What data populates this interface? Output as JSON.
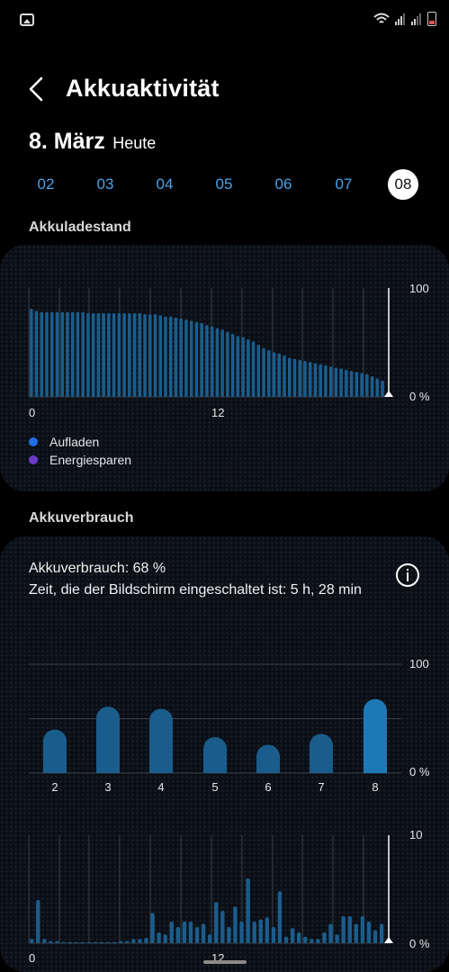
{
  "status_bar": {
    "icons": [
      "gallery-icon",
      "wifi-icon",
      "signal-icon",
      "signal-icon",
      "battery-icon"
    ]
  },
  "header": {
    "title": "Akkuaktivität",
    "back_icon": "chevron-left-icon"
  },
  "date": {
    "main": "8. März",
    "sub": "Heute"
  },
  "day_tabs": [
    "02",
    "03",
    "04",
    "05",
    "06",
    "07",
    "08"
  ],
  "selected_day": "08",
  "battery_level": {
    "section_title": "Akkuladestand",
    "y_max_label": "100",
    "y_min_label": "0 %",
    "x_labels": [
      "0",
      "12"
    ],
    "legend": [
      {
        "label": "Aufladen",
        "color": "#1e6fe8"
      },
      {
        "label": "Energiesparen",
        "color": "#6a3ac9"
      }
    ]
  },
  "usage": {
    "section_title": "Akkuverbrauch",
    "line1": "Akkuverbrauch: 68 %",
    "line2": "Zeit, die der Bildschirm eingeschaltet ist: 5 h, 28 min",
    "info_icon": "info-icon",
    "daily_y_max": "100",
    "daily_y_min": "0 %",
    "hourly_y_max": "10",
    "hourly_y_min": "0 %",
    "hourly_x_labels": [
      "0",
      "12"
    ]
  },
  "colors": {
    "accent": "#4aa3ea",
    "bar": "#1a5d8c",
    "bar_highlight": "#1f78b6",
    "background": "#000000"
  },
  "chart_data": [
    {
      "type": "bar",
      "title": "Akkuladestand",
      "ylim": [
        0,
        100
      ],
      "x_tick_labels": [
        "0",
        "12"
      ],
      "values": [
        81,
        79,
        78,
        78,
        78,
        78,
        78,
        78,
        78,
        78,
        78,
        77,
        77,
        77,
        77,
        77,
        77,
        77,
        77,
        77,
        77,
        77,
        76,
        76,
        76,
        75,
        74,
        74,
        73,
        72,
        71,
        70,
        69,
        68,
        66,
        65,
        63,
        62,
        60,
        58,
        56,
        55,
        53,
        51,
        48,
        45,
        43,
        41,
        40,
        38,
        36,
        35,
        34,
        33,
        32,
        31,
        30,
        29,
        28,
        27,
        26,
        25,
        24,
        23,
        22,
        21,
        19,
        17,
        15
      ]
    },
    {
      "type": "bar",
      "title": "Akkuverbrauch",
      "categories": [
        "2",
        "3",
        "4",
        "5",
        "6",
        "7",
        "8"
      ],
      "values": [
        40,
        61,
        59,
        33,
        26,
        36,
        68
      ],
      "ylim": [
        0,
        100
      ]
    },
    {
      "type": "bar",
      "title": "Akkuverbrauch",
      "ylim": [
        0,
        10
      ],
      "x_tick_labels": [
        "0",
        "12"
      ],
      "values": [
        0.4,
        4.0,
        0.4,
        0.2,
        0.2,
        0.1,
        0.1,
        0.1,
        0.1,
        0.1,
        0.1,
        0.1,
        0.1,
        0.1,
        0.2,
        0.2,
        0.4,
        0.4,
        0.5,
        2.8,
        1.0,
        0.8,
        2.0,
        1.5,
        2.0,
        2.0,
        1.5,
        1.8,
        0.8,
        3.8,
        3.0,
        1.5,
        3.4,
        2.0,
        6.0,
        2.0,
        2.2,
        2.4,
        1.5,
        4.8,
        0.6,
        1.4,
        1.0,
        0.6,
        0.4,
        0.4,
        1.0,
        1.8,
        0.8,
        2.5,
        2.5,
        1.8,
        2.5,
        2.0,
        1.2,
        1.8
      ]
    }
  ]
}
